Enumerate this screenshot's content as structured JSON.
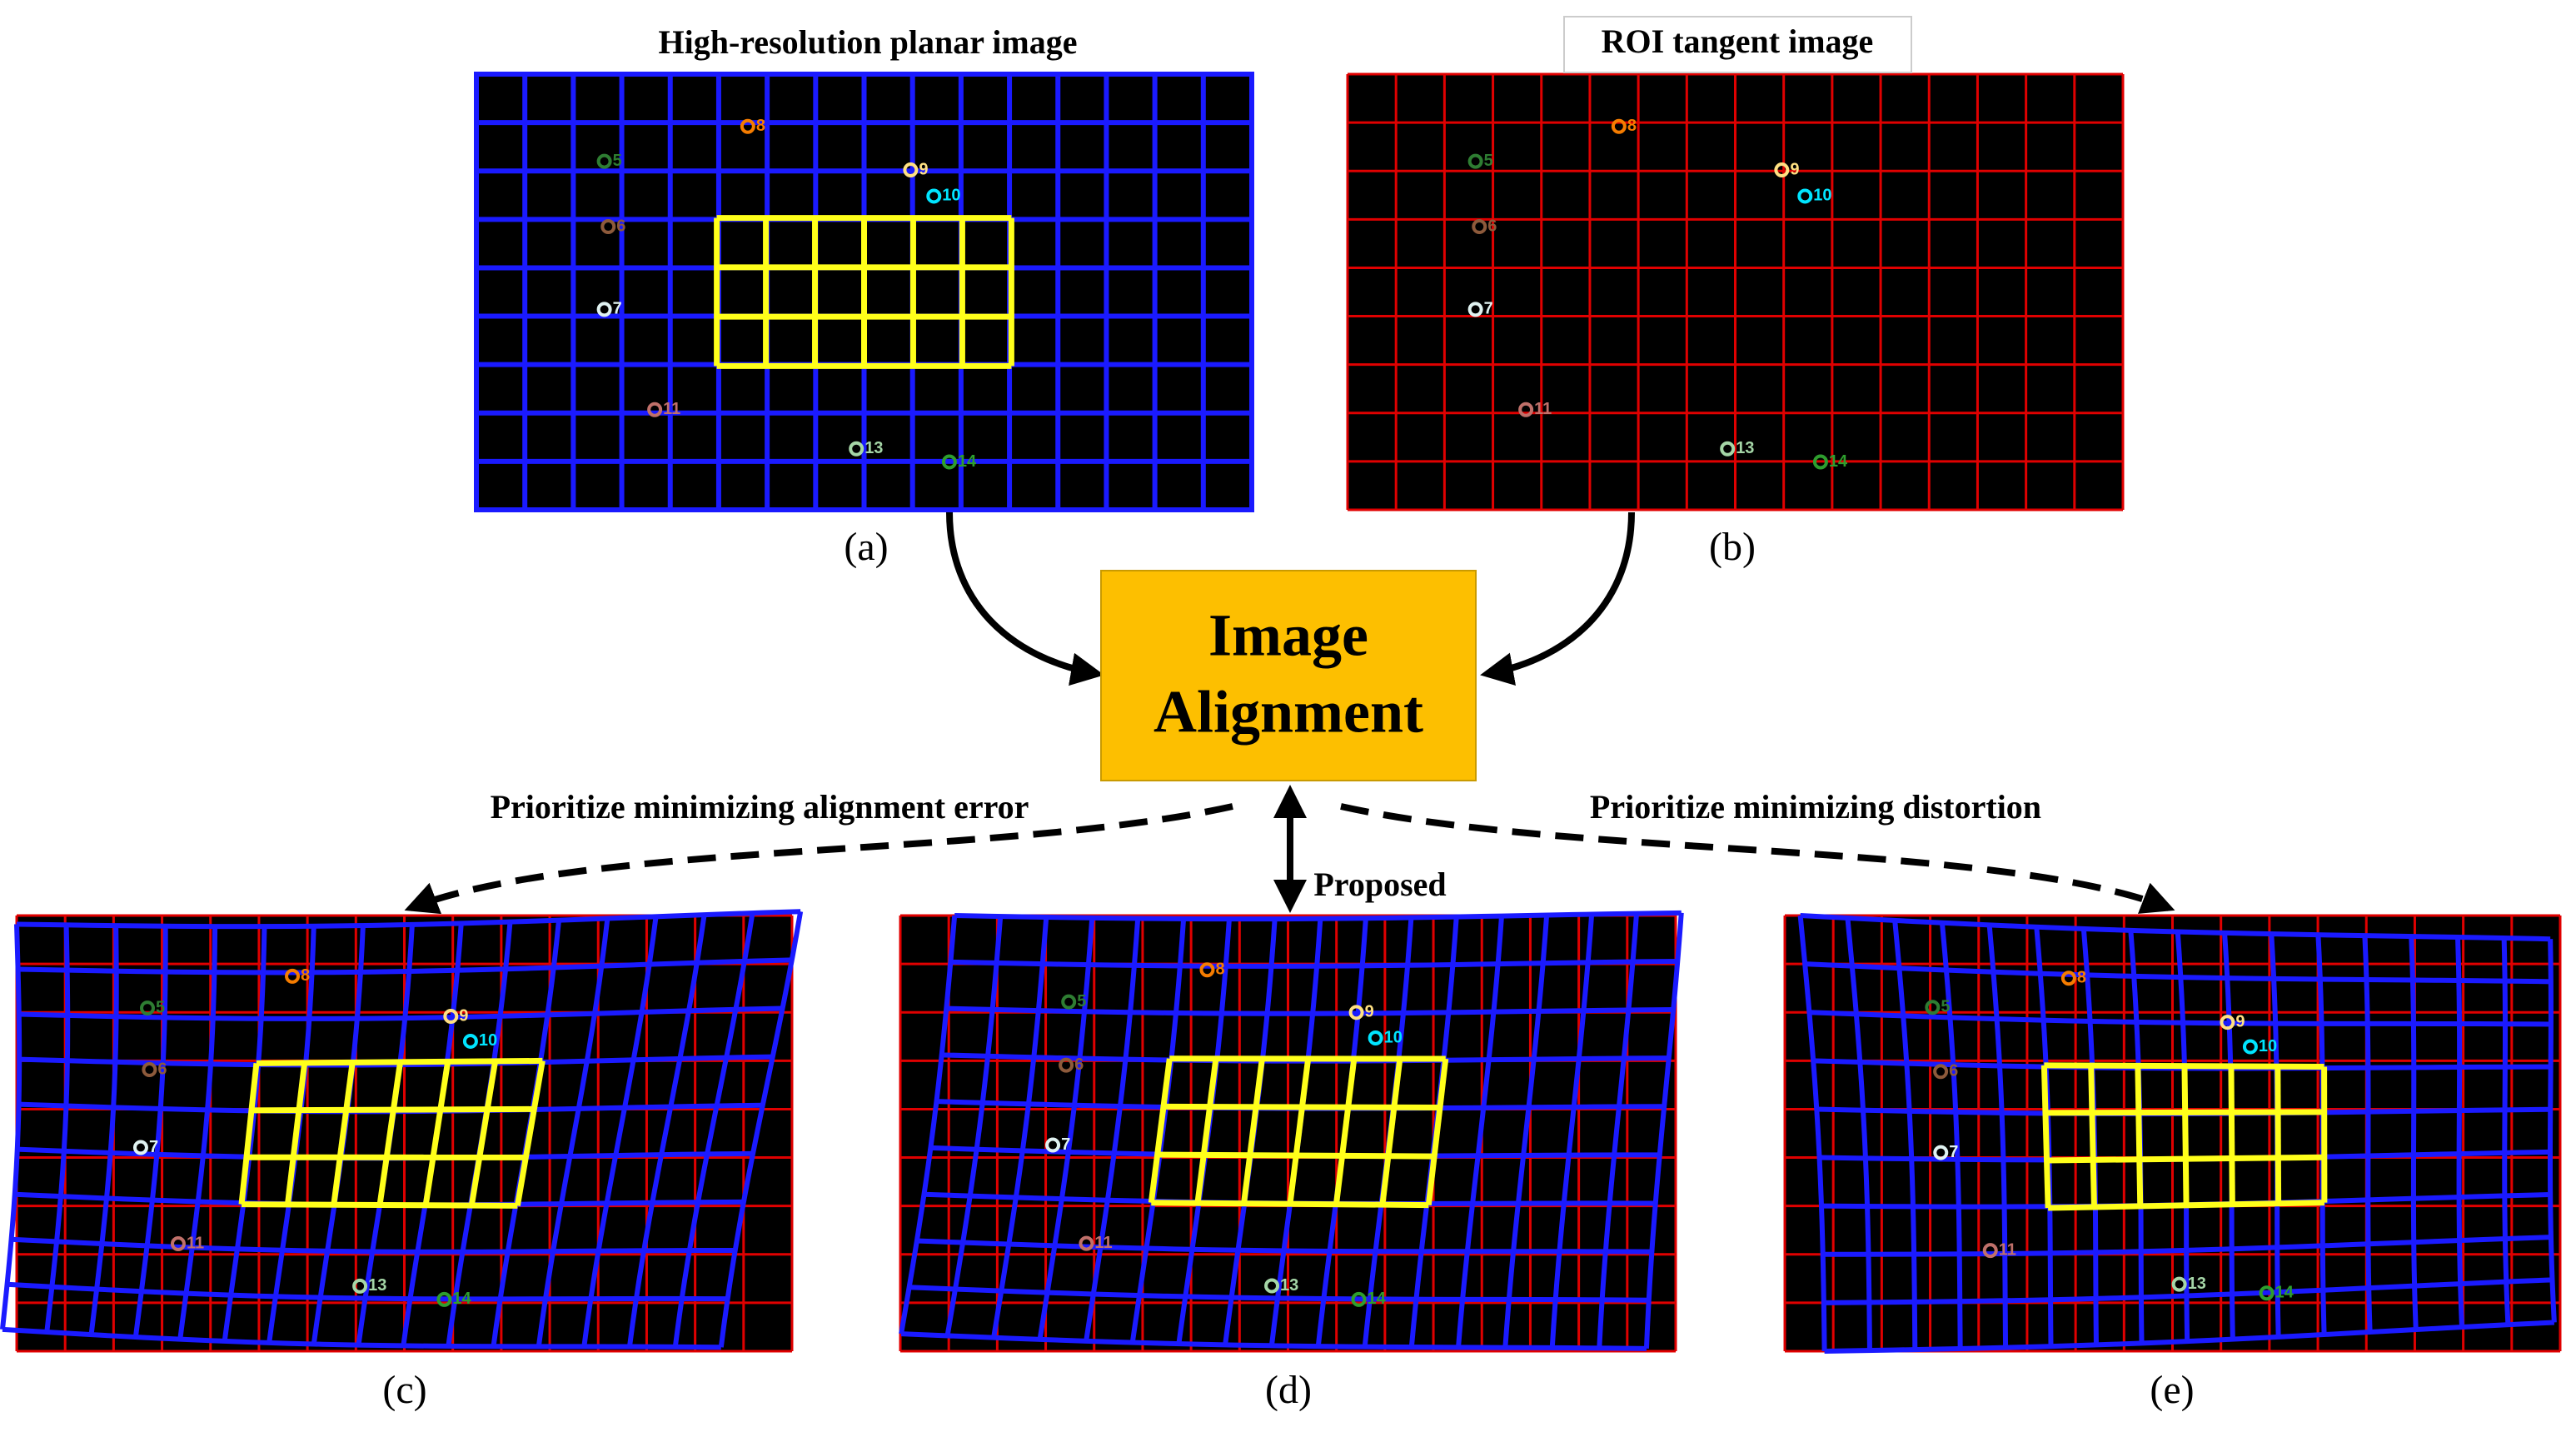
{
  "top_panels": [
    {
      "title": "High-resolution planar image",
      "label": "(a)"
    },
    {
      "title": "ROI tangent image",
      "label": "(b)"
    }
  ],
  "center": {
    "line1": "Image",
    "line2": "Alignment"
  },
  "branches": {
    "left": "Prioritize minimizing alignment error",
    "middle": "Proposed",
    "right": "Prioritize minimizing distortion"
  },
  "bottom_panels": [
    {
      "label": "(c)"
    },
    {
      "label": "(d)"
    },
    {
      "label": "(e)"
    }
  ],
  "keypoint_labels": [
    "5",
    "6",
    "7",
    "8",
    "9",
    "10",
    "11",
    "13",
    "14"
  ]
}
